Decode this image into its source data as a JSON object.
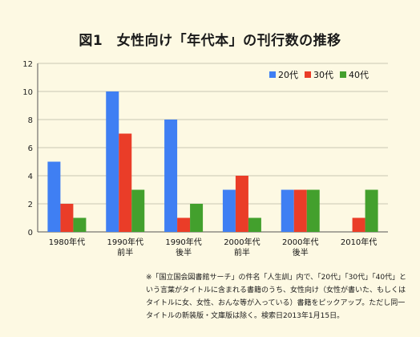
{
  "title": "図1　女性向け「年代本」の刊行数の推移",
  "footnote": "※「国立国会図書館サーチ」の件名「人生訓」内で、「20代」「30代」「40代」という言葉がタイトルに含まれる書籍のうち、女性向け（女性が書いた、もしくはタイトルに女、女性、おんな等が入っている）書籍をピックアップ。ただし同一タイトルの新装版・文庫版は除く。検索日2013年1月15日。",
  "colors": {
    "20s": "#3f7ff3",
    "30s": "#ea3d28",
    "40s": "#43a02d",
    "grid": "#c9c6b3",
    "background": "#fdf9e3"
  },
  "chart_data": {
    "type": "bar",
    "title": "図1　女性向け「年代本」の刊行数の推移",
    "categories": [
      [
        "1980年代"
      ],
      [
        "1990年代",
        "前半"
      ],
      [
        "1990年代",
        "後半"
      ],
      [
        "2000年代",
        "前半"
      ],
      [
        "2000年代",
        "後半"
      ],
      [
        "2010年代"
      ]
    ],
    "series": [
      {
        "name": "20代",
        "values": [
          5,
          10,
          8,
          3,
          3,
          0
        ]
      },
      {
        "name": "30代",
        "values": [
          2,
          7,
          1,
          4,
          3,
          1
        ]
      },
      {
        "name": "40代",
        "values": [
          1,
          3,
          2,
          1,
          3,
          3
        ]
      }
    ],
    "ylim": [
      0,
      12
    ],
    "yticks": [
      0,
      2,
      4,
      6,
      8,
      10,
      12
    ],
    "grid": true,
    "legend": "top-right"
  }
}
